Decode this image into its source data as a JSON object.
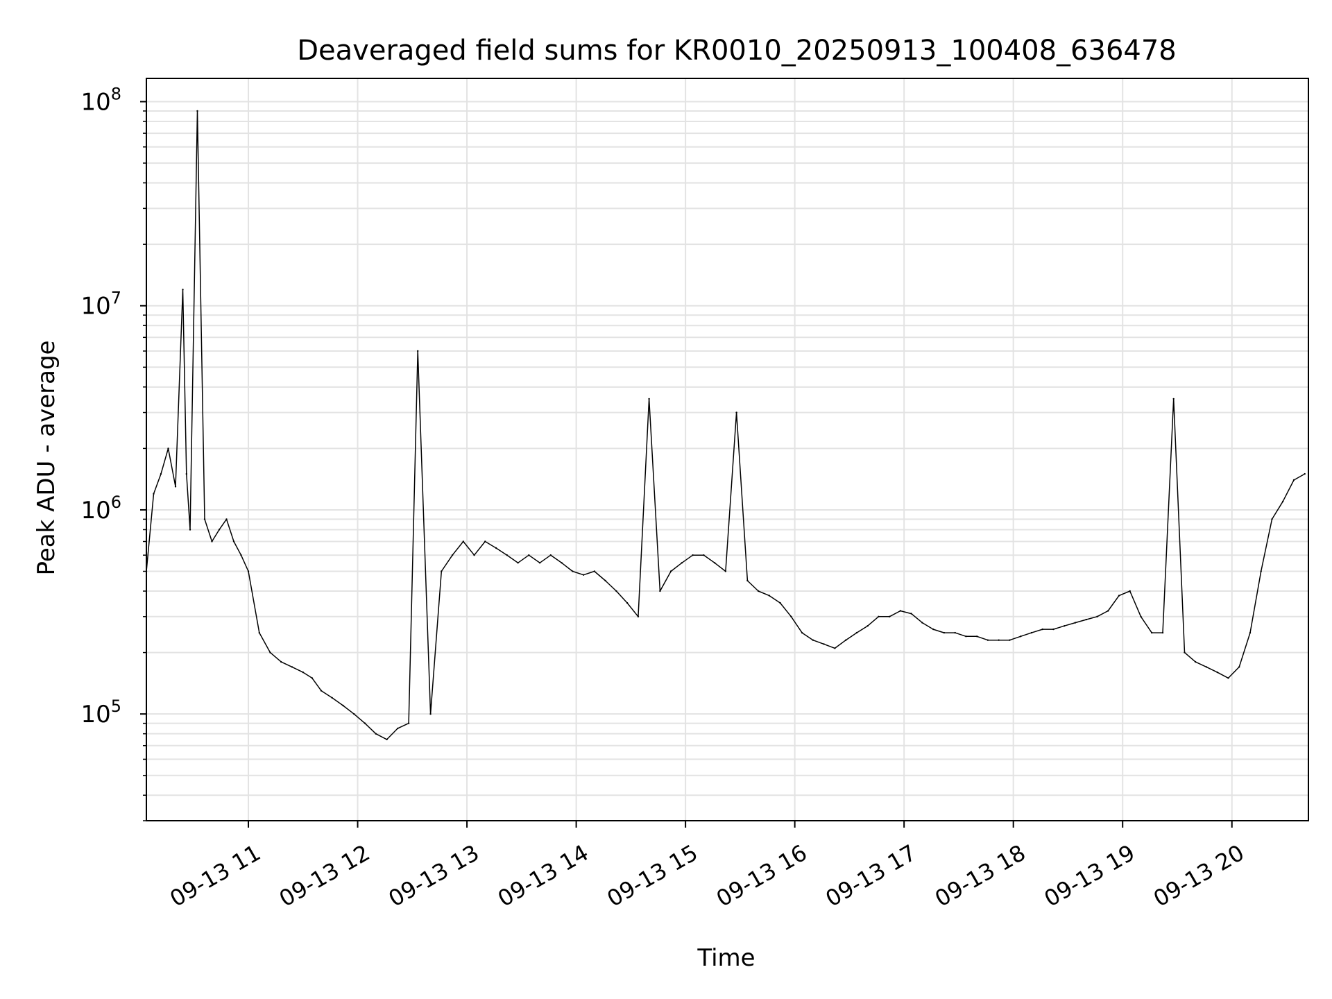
{
  "chart_data": {
    "type": "line",
    "title": "Deaveraged field sums for KR0010_20250913_100408_636478",
    "xlabel": "Time",
    "ylabel": "Peak ADU - average",
    "x_range": [
      "2025-09-13 10:04",
      "2025-09-13 20:42"
    ],
    "y_scale": "log",
    "ylim": [
      30000,
      130000000
    ],
    "grid": true,
    "line_color": "#000000",
    "x_ticks": [
      {
        "value": "2025-09-13 11:00",
        "label": "09-13 11"
      },
      {
        "value": "2025-09-13 12:00",
        "label": "09-13 12"
      },
      {
        "value": "2025-09-13 13:00",
        "label": "09-13 13"
      },
      {
        "value": "2025-09-13 14:00",
        "label": "09-13 14"
      },
      {
        "value": "2025-09-13 15:00",
        "label": "09-13 15"
      },
      {
        "value": "2025-09-13 16:00",
        "label": "09-13 16"
      },
      {
        "value": "2025-09-13 17:00",
        "label": "09-13 17"
      },
      {
        "value": "2025-09-13 18:00",
        "label": "09-13 18"
      },
      {
        "value": "2025-09-13 19:00",
        "label": "09-13 19"
      },
      {
        "value": "2025-09-13 20:00",
        "label": "09-13 20"
      }
    ],
    "y_ticks": [
      {
        "value": 100000,
        "label_base": "10",
        "label_exp": "5"
      },
      {
        "value": 1000000,
        "label_base": "10",
        "label_exp": "6"
      },
      {
        "value": 10000000,
        "label_base": "10",
        "label_exp": "7"
      },
      {
        "value": 100000000,
        "label_base": "10",
        "label_exp": "8"
      }
    ],
    "series": [
      {
        "x": [
          "2025-09-13 10:04",
          "2025-09-13 10:08",
          "2025-09-13 10:12",
          "2025-09-13 10:16",
          "2025-09-13 10:20",
          "2025-09-13 10:24",
          "2025-09-13 10:26",
          "2025-09-13 10:28",
          "2025-09-13 10:32",
          "2025-09-13 10:36",
          "2025-09-13 10:40",
          "2025-09-13 10:44",
          "2025-09-13 10:48",
          "2025-09-13 10:52",
          "2025-09-13 10:56",
          "2025-09-13 11:00",
          "2025-09-13 11:06",
          "2025-09-13 11:12",
          "2025-09-13 11:18",
          "2025-09-13 11:24",
          "2025-09-13 11:30",
          "2025-09-13 11:35",
          "2025-09-13 11:40",
          "2025-09-13 11:46",
          "2025-09-13 11:52",
          "2025-09-13 11:58",
          "2025-09-13 12:04",
          "2025-09-13 12:10",
          "2025-09-13 12:16",
          "2025-09-13 12:22",
          "2025-09-13 12:28",
          "2025-09-13 12:33",
          "2025-09-13 12:40",
          "2025-09-13 12:46",
          "2025-09-13 12:52",
          "2025-09-13 12:58",
          "2025-09-13 13:04",
          "2025-09-13 13:10",
          "2025-09-13 13:16",
          "2025-09-13 13:22",
          "2025-09-13 13:28",
          "2025-09-13 13:34",
          "2025-09-13 13:40",
          "2025-09-13 13:46",
          "2025-09-13 13:52",
          "2025-09-13 13:58",
          "2025-09-13 14:04",
          "2025-09-13 14:10",
          "2025-09-13 14:16",
          "2025-09-13 14:22",
          "2025-09-13 14:28",
          "2025-09-13 14:34",
          "2025-09-13 14:40",
          "2025-09-13 14:46",
          "2025-09-13 14:52",
          "2025-09-13 14:58",
          "2025-09-13 15:04",
          "2025-09-13 15:10",
          "2025-09-13 15:16",
          "2025-09-13 15:22",
          "2025-09-13 15:28",
          "2025-09-13 15:34",
          "2025-09-13 15:40",
          "2025-09-13 15:46",
          "2025-09-13 15:52",
          "2025-09-13 15:58",
          "2025-09-13 16:04",
          "2025-09-13 16:10",
          "2025-09-13 16:16",
          "2025-09-13 16:22",
          "2025-09-13 16:28",
          "2025-09-13 16:34",
          "2025-09-13 16:40",
          "2025-09-13 16:46",
          "2025-09-13 16:52",
          "2025-09-13 16:58",
          "2025-09-13 17:04",
          "2025-09-13 17:10",
          "2025-09-13 17:16",
          "2025-09-13 17:22",
          "2025-09-13 17:28",
          "2025-09-13 17:34",
          "2025-09-13 17:40",
          "2025-09-13 17:46",
          "2025-09-13 17:52",
          "2025-09-13 17:58",
          "2025-09-13 18:04",
          "2025-09-13 18:10",
          "2025-09-13 18:16",
          "2025-09-13 18:22",
          "2025-09-13 18:28",
          "2025-09-13 18:34",
          "2025-09-13 18:40",
          "2025-09-13 18:46",
          "2025-09-13 18:52",
          "2025-09-13 18:58",
          "2025-09-13 19:04",
          "2025-09-13 19:10",
          "2025-09-13 19:16",
          "2025-09-13 19:22",
          "2025-09-13 19:28",
          "2025-09-13 19:34",
          "2025-09-13 19:40",
          "2025-09-13 19:46",
          "2025-09-13 19:52",
          "2025-09-13 19:58",
          "2025-09-13 20:04",
          "2025-09-13 20:10",
          "2025-09-13 20:16",
          "2025-09-13 20:22",
          "2025-09-13 20:28",
          "2025-09-13 20:34",
          "2025-09-13 20:40"
        ],
        "y": [
          500000,
          1200000,
          1500000,
          2000000,
          1300000,
          12000000,
          1500000,
          800000,
          90000000,
          900000,
          700000,
          800000,
          900000,
          700000,
          600000,
          500000,
          250000,
          200000,
          180000,
          170000,
          160000,
          150000,
          130000,
          120000,
          110000,
          100000,
          90000,
          80000,
          75000,
          85000,
          90000,
          6000000,
          100000,
          500000,
          600000,
          700000,
          600000,
          700000,
          650000,
          600000,
          550000,
          600000,
          550000,
          600000,
          550000,
          500000,
          480000,
          500000,
          450000,
          400000,
          350000,
          300000,
          3500000,
          400000,
          500000,
          550000,
          600000,
          600000,
          550000,
          500000,
          3000000,
          450000,
          400000,
          380000,
          350000,
          300000,
          250000,
          230000,
          220000,
          210000,
          230000,
          250000,
          270000,
          300000,
          300000,
          320000,
          310000,
          280000,
          260000,
          250000,
          250000,
          240000,
          240000,
          230000,
          230000,
          230000,
          240000,
          250000,
          260000,
          260000,
          270000,
          280000,
          290000,
          300000,
          320000,
          380000,
          400000,
          300000,
          250000,
          250000,
          3500000,
          200000,
          180000,
          170000,
          160000,
          150000,
          170000,
          250000,
          500000,
          900000,
          1100000,
          1400000,
          1500000
        ]
      }
    ]
  }
}
